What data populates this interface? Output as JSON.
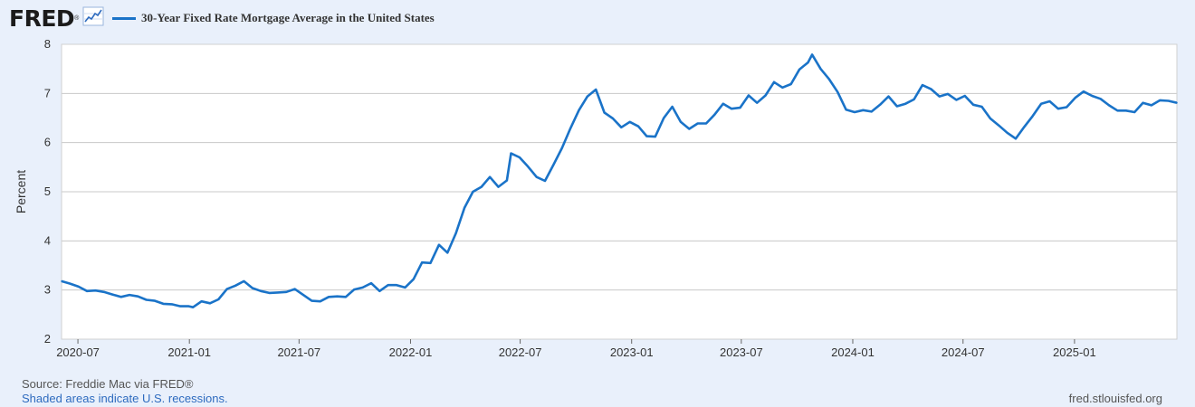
{
  "logo": {
    "text": "FRED",
    "mark": "®",
    "icon": "chart-line-icon"
  },
  "legend": {
    "label": "30-Year Fixed Rate Mortgage Average in the United States",
    "color": "#1a73c8"
  },
  "footer": {
    "source": "Source: Freddie Mac via FRED®",
    "recession_note": "Shaded areas indicate U.S. recessions.",
    "site": "fred.stlouisfed.org"
  },
  "chart_data": {
    "type": "line",
    "title": "30-Year Fixed Rate Mortgage Average in the United States",
    "xlabel": "",
    "ylabel": "Percent",
    "ylim": [
      2,
      8
    ],
    "xlim": [
      "2020-06-04",
      "2025-06-19"
    ],
    "yticks": [
      "2",
      "3",
      "4",
      "5",
      "6",
      "7",
      "8"
    ],
    "xticks": [
      {
        "date": "2020-07-01",
        "label": "2020-07"
      },
      {
        "date": "2021-01-01",
        "label": "2021-01"
      },
      {
        "date": "2021-07-01",
        "label": "2021-07"
      },
      {
        "date": "2022-01-01",
        "label": "2022-01"
      },
      {
        "date": "2022-07-01",
        "label": "2022-07"
      },
      {
        "date": "2023-01-01",
        "label": "2023-01"
      },
      {
        "date": "2023-07-01",
        "label": "2023-07"
      },
      {
        "date": "2024-01-01",
        "label": "2024-01"
      },
      {
        "date": "2024-07-01",
        "label": "2024-07"
      },
      {
        "date": "2025-01-01",
        "label": "2025-01"
      }
    ],
    "grid": true,
    "legend_position": "top-left",
    "color": "#1a73c8",
    "x": [
      "2020-06-04",
      "2020-06-18",
      "2020-07-02",
      "2020-07-16",
      "2020-07-30",
      "2020-08-13",
      "2020-08-27",
      "2020-09-10",
      "2020-09-24",
      "2020-10-08",
      "2020-10-22",
      "2020-11-05",
      "2020-11-19",
      "2020-12-03",
      "2020-12-17",
      "2020-12-31",
      "2021-01-07",
      "2021-01-21",
      "2021-02-04",
      "2021-02-18",
      "2021-03-04",
      "2021-03-18",
      "2021-04-01",
      "2021-04-15",
      "2021-04-29",
      "2021-05-13",
      "2021-05-27",
      "2021-06-10",
      "2021-06-24",
      "2021-07-08",
      "2021-07-22",
      "2021-08-05",
      "2021-08-19",
      "2021-09-02",
      "2021-09-16",
      "2021-09-30",
      "2021-10-14",
      "2021-10-28",
      "2021-11-11",
      "2021-11-25",
      "2021-12-09",
      "2021-12-23",
      "2022-01-06",
      "2022-01-20",
      "2022-02-03",
      "2022-02-17",
      "2022-03-03",
      "2022-03-17",
      "2022-03-31",
      "2022-04-14",
      "2022-04-28",
      "2022-05-12",
      "2022-05-26",
      "2022-06-09",
      "2022-06-16",
      "2022-06-30",
      "2022-07-14",
      "2022-07-28",
      "2022-08-11",
      "2022-08-25",
      "2022-09-08",
      "2022-09-22",
      "2022-10-06",
      "2022-10-20",
      "2022-11-03",
      "2022-11-17",
      "2022-12-01",
      "2022-12-15",
      "2022-12-29",
      "2023-01-12",
      "2023-01-26",
      "2023-02-09",
      "2023-02-23",
      "2023-03-09",
      "2023-03-23",
      "2023-04-06",
      "2023-04-20",
      "2023-05-04",
      "2023-05-18",
      "2023-06-01",
      "2023-06-15",
      "2023-06-29",
      "2023-07-13",
      "2023-07-27",
      "2023-08-10",
      "2023-08-24",
      "2023-09-07",
      "2023-09-21",
      "2023-10-05",
      "2023-10-19",
      "2023-10-26",
      "2023-11-09",
      "2023-11-23",
      "2023-12-07",
      "2023-12-21",
      "2024-01-04",
      "2024-01-18",
      "2024-02-01",
      "2024-02-15",
      "2024-02-29",
      "2024-03-14",
      "2024-03-28",
      "2024-04-11",
      "2024-04-25",
      "2024-05-09",
      "2024-05-23",
      "2024-06-06",
      "2024-06-20",
      "2024-07-04",
      "2024-07-18",
      "2024-08-01",
      "2024-08-15",
      "2024-08-29",
      "2024-09-12",
      "2024-09-26",
      "2024-10-10",
      "2024-10-24",
      "2024-11-07",
      "2024-11-21",
      "2024-12-05",
      "2024-12-19",
      "2025-01-02",
      "2025-01-16",
      "2025-01-30",
      "2025-02-13",
      "2025-02-27",
      "2025-03-13",
      "2025-03-27",
      "2025-04-10",
      "2025-04-24",
      "2025-05-08",
      "2025-05-22",
      "2025-06-05",
      "2025-06-19"
    ],
    "series": [
      {
        "values": [
          3.18,
          3.13,
          3.07,
          2.98,
          2.99,
          2.96,
          2.91,
          2.86,
          2.9,
          2.87,
          2.8,
          2.78,
          2.72,
          2.71,
          2.67,
          2.67,
          2.65,
          2.77,
          2.73,
          2.81,
          3.02,
          3.09,
          3.18,
          3.04,
          2.98,
          2.94,
          2.95,
          2.96,
          3.02,
          2.9,
          2.78,
          2.77,
          2.86,
          2.87,
          2.86,
          3.01,
          3.05,
          3.14,
          2.98,
          3.1,
          3.1,
          3.05,
          3.22,
          3.56,
          3.55,
          3.92,
          3.76,
          4.16,
          4.67,
          5.0,
          5.1,
          5.3,
          5.1,
          5.23,
          5.78,
          5.7,
          5.51,
          5.3,
          5.22,
          5.55,
          5.89,
          6.29,
          6.66,
          6.94,
          7.08,
          6.61,
          6.49,
          6.31,
          6.42,
          6.33,
          6.13,
          6.12,
          6.5,
          6.73,
          6.42,
          6.28,
          6.39,
          6.39,
          6.57,
          6.79,
          6.69,
          6.71,
          6.96,
          6.81,
          6.96,
          7.23,
          7.12,
          7.19,
          7.49,
          7.63,
          7.79,
          7.5,
          7.29,
          7.03,
          6.67,
          6.62,
          6.66,
          6.63,
          6.77,
          6.94,
          6.74,
          6.79,
          6.88,
          7.17,
          7.09,
          6.94,
          6.99,
          6.87,
          6.95,
          6.77,
          6.73,
          6.49,
          6.35,
          6.2,
          6.08,
          6.32,
          6.54,
          6.79,
          6.84,
          6.69,
          6.72,
          6.91,
          7.04,
          6.95,
          6.89,
          6.76,
          6.65,
          6.65,
          6.62,
          6.81,
          6.76,
          6.86,
          6.85,
          6.81
        ]
      }
    ]
  }
}
